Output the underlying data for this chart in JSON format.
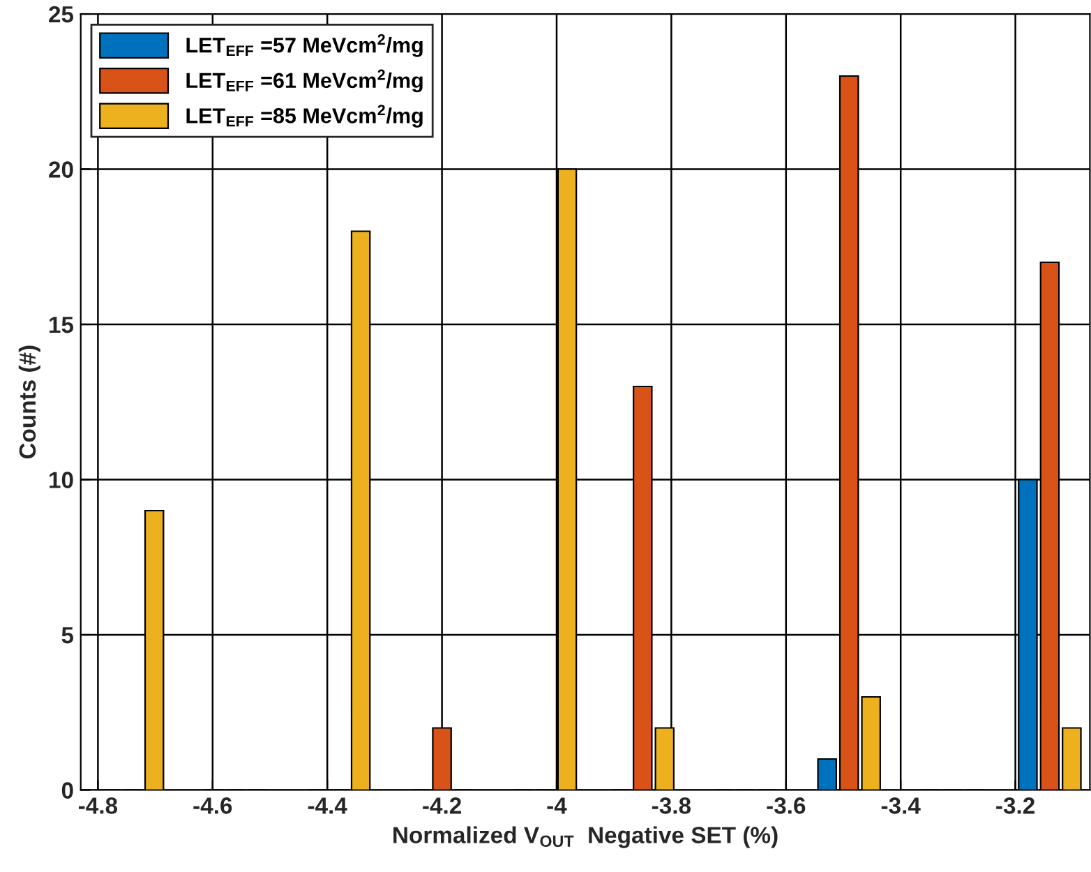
{
  "chart_data": {
    "type": "bar",
    "xlabel": "Normalized V$_{OUT}$  Negative SET (%)",
    "ylabel": "Counts (#)",
    "x": [
      -4.74,
      -4.56,
      -4.38,
      -4.2,
      -4.02,
      -3.85,
      -3.67,
      -3.49,
      -3.31,
      -3.14
    ],
    "series": [
      {
        "name": "LET$_{EFF}$ =57 MeVcm$^{2}$/mg",
        "color": "#0072bd",
        "values": [
          0,
          0,
          0,
          0,
          0,
          0,
          0,
          1,
          0,
          10
        ]
      },
      {
        "name": "LET$_{EFF}$ =61 MeVcm$^{2}$/mg",
        "color": "#d95319",
        "values": [
          0,
          0,
          0,
          2,
          0,
          13,
          0,
          23,
          0,
          17
        ]
      },
      {
        "name": "LET$_{EFF}$ =85 MeVcm$^{2}$/mg",
        "color": "#edb120",
        "values": [
          9,
          0,
          18,
          0,
          20,
          2,
          0,
          3,
          0,
          2
        ]
      }
    ],
    "xlim": [
      -4.83,
      -3.07
    ],
    "xticks": [
      -4.8,
      -4.6,
      -4.4,
      -4.2,
      -4,
      -3.8,
      -3.6,
      -3.4,
      -3.2
    ],
    "ylim": [
      0,
      25
    ],
    "yticks": [
      0,
      5,
      10,
      15,
      20,
      25
    ],
    "grid": true,
    "legend": "top left"
  }
}
